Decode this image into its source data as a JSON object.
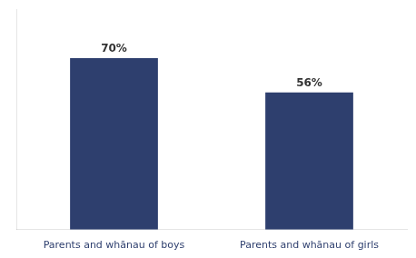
{
  "chart_data": {
    "type": "bar",
    "categories": [
      "Parents and whānau of boys",
      "Parents and whānau of girls"
    ],
    "values": [
      70,
      56
    ],
    "value_labels": [
      "70%",
      "56%"
    ],
    "color": "#2E3F6E",
    "ylim": [
      0,
      90
    ],
    "grid": false,
    "data_labels": true,
    "tick_labels": "x"
  }
}
